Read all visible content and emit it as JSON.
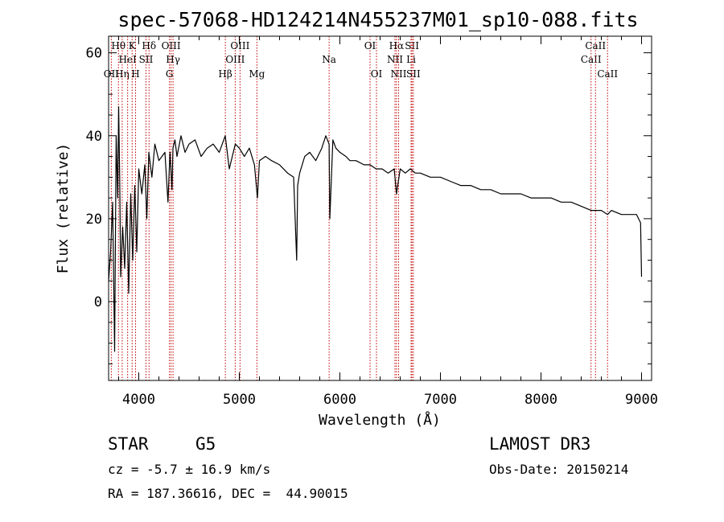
{
  "chart_data": {
    "type": "line",
    "title": "spec-57068-HD124214N455237M01_sp10-088.fits",
    "xlabel": "Wavelength (Å)",
    "ylabel": "Flux (relative)",
    "xlim": [
      3700,
      9100
    ],
    "ylim": [
      -19,
      64
    ],
    "xticks": [
      4000,
      5000,
      6000,
      7000,
      8000,
      9000
    ],
    "yticks": [
      0,
      20,
      40,
      60
    ],
    "series": [
      {
        "name": "flux",
        "x": [
          3700,
          3720,
          3740,
          3760,
          3775,
          3790,
          3800,
          3810,
          3820,
          3840,
          3860,
          3880,
          3900,
          3920,
          3940,
          3960,
          3980,
          4000,
          4030,
          4060,
          4080,
          4100,
          4130,
          4160,
          4200,
          4230,
          4260,
          4290,
          4310,
          4330,
          4340,
          4360,
          4380,
          4420,
          4460,
          4500,
          4560,
          4620,
          4680,
          4740,
          4800,
          4860,
          4900,
          4960,
          5000,
          5050,
          5100,
          5150,
          5180,
          5200,
          5260,
          5320,
          5400,
          5480,
          5540,
          5570,
          5580,
          5600,
          5650,
          5700,
          5760,
          5820,
          5860,
          5893,
          5900,
          5930,
          5960,
          6000,
          6060,
          6100,
          6160,
          6240,
          6300,
          6360,
          6420,
          6480,
          6540,
          6563,
          6600,
          6650,
          6700,
          6750,
          6800,
          6900,
          7000,
          7100,
          7200,
          7300,
          7400,
          7500,
          7600,
          7700,
          7800,
          7900,
          8000,
          8100,
          8200,
          8300,
          8400,
          8498,
          8542,
          8600,
          8662,
          8700,
          8800,
          8900,
          8950,
          8990,
          9000
        ],
        "y": [
          5,
          12,
          24,
          -12,
          40,
          25,
          47,
          30,
          6,
          18,
          8,
          24,
          2,
          26,
          10,
          28,
          12,
          32,
          26,
          33,
          20,
          36,
          30,
          38,
          34,
          35,
          36,
          24,
          36,
          27,
          37,
          39,
          35,
          40,
          36,
          38,
          39,
          35,
          37,
          38,
          36,
          40,
          32,
          38,
          37,
          35,
          37,
          33,
          25,
          34,
          35,
          34,
          33,
          31,
          30,
          10,
          28,
          31,
          35,
          36,
          34,
          37,
          40,
          38,
          20,
          39,
          37,
          36,
          35,
          34,
          34,
          33,
          33,
          32,
          32,
          31,
          32,
          26,
          32,
          31,
          32,
          31,
          31,
          30,
          30,
          29,
          28,
          28,
          27,
          27,
          26,
          26,
          26,
          25,
          25,
          25,
          24,
          24,
          23,
          22,
          22,
          22,
          21,
          22,
          21,
          21,
          21,
          19,
          6
        ]
      }
    ],
    "lines": [
      {
        "label": "OII",
        "wave": 3727,
        "row": 3
      },
      {
        "label": "Hθ",
        "wave": 3798,
        "row": 1
      },
      {
        "label": "Hη",
        "wave": 3835,
        "row": 3
      },
      {
        "label": "HeI",
        "wave": 3889,
        "row": 2
      },
      {
        "label": "K",
        "wave": 3934,
        "row": 1
      },
      {
        "label": "H",
        "wave": 3968,
        "row": 3
      },
      {
        "label": "SII",
        "wave": 4072,
        "row": 2
      },
      {
        "label": "Hδ",
        "wave": 4102,
        "row": 1
      },
      {
        "label": "G",
        "wave": 4305,
        "row": 3
      },
      {
        "label": "OIII",
        "wave": 4321,
        "row": 1
      },
      {
        "label": "Hγ",
        "wave": 4341,
        "row": 2
      },
      {
        "label": "Hβ",
        "wave": 4861,
        "row": 3
      },
      {
        "label": "OIII",
        "wave": 4959,
        "row": 2
      },
      {
        "label": "OIII",
        "wave": 5007,
        "row": 1
      },
      {
        "label": "Mg",
        "wave": 5175,
        "row": 3
      },
      {
        "label": "Na",
        "wave": 5893,
        "row": 2
      },
      {
        "label": "OI",
        "wave": 6300,
        "row": 1
      },
      {
        "label": "OI",
        "wave": 6364,
        "row": 3
      },
      {
        "label": "NII",
        "wave": 6548,
        "row": 2
      },
      {
        "label": "Hα",
        "wave": 6563,
        "row": 1
      },
      {
        "label": "NII",
        "wave": 6584,
        "row": 3
      },
      {
        "label": "Li",
        "wave": 6708,
        "row": 2
      },
      {
        "label": "SII",
        "wave": 6717,
        "row": 1
      },
      {
        "label": "SII",
        "wave": 6731,
        "row": 3
      },
      {
        "label": "CaII",
        "wave": 8498,
        "row": 2
      },
      {
        "label": "CaII",
        "wave": 8542,
        "row": 1
      },
      {
        "label": "CaII",
        "wave": 8662,
        "row": 3
      }
    ]
  },
  "info": {
    "object_class": "STAR",
    "subclass": "G5",
    "survey": "LAMOST DR3",
    "redshift": "cz = -5.7 ± 16.9 km/s",
    "obs_date": "Obs-Date: 20150214",
    "coords": "RA = 187.36616, DEC =  44.90015"
  },
  "colors": {
    "axis": "#000000",
    "spectrum": "#000000",
    "line_marker": "#c00000"
  }
}
